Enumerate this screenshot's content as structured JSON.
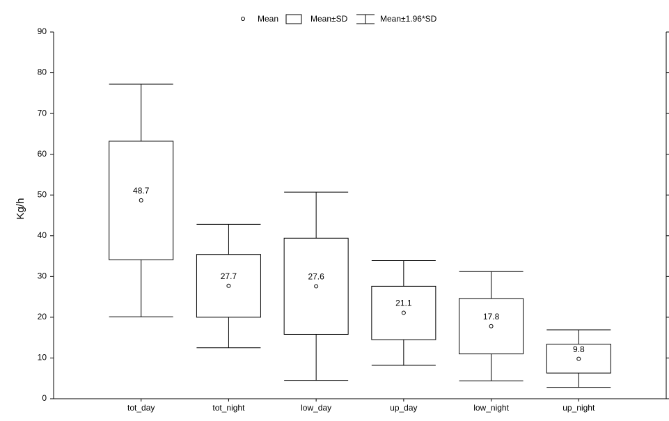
{
  "chart_data": {
    "type": "box",
    "y_label": "Kg/h",
    "legend": [
      "Mean",
      "Mean±SD",
      "Mean±1.96*SD"
    ],
    "categories": [
      "tot_day",
      "tot_night",
      "low_day",
      "up_day",
      "low_night",
      "up_night"
    ],
    "values": [
      48.7,
      27.7,
      27.6,
      21.1,
      17.8,
      9.8
    ],
    "box_low": [
      34.1,
      20.0,
      15.8,
      14.5,
      11.0,
      6.3
    ],
    "box_high": [
      63.2,
      35.4,
      39.4,
      27.6,
      24.6,
      13.4
    ],
    "whisker_low": [
      20.1,
      12.5,
      4.5,
      8.2,
      4.4,
      2.8
    ],
    "whisker_high": [
      77.2,
      42.8,
      50.7,
      33.9,
      31.2,
      16.9
    ],
    "color": "#000000",
    "ylim": [
      0,
      90
    ],
    "yticks": [
      0,
      10,
      20,
      30,
      40,
      50,
      60,
      70,
      80,
      90
    ]
  }
}
